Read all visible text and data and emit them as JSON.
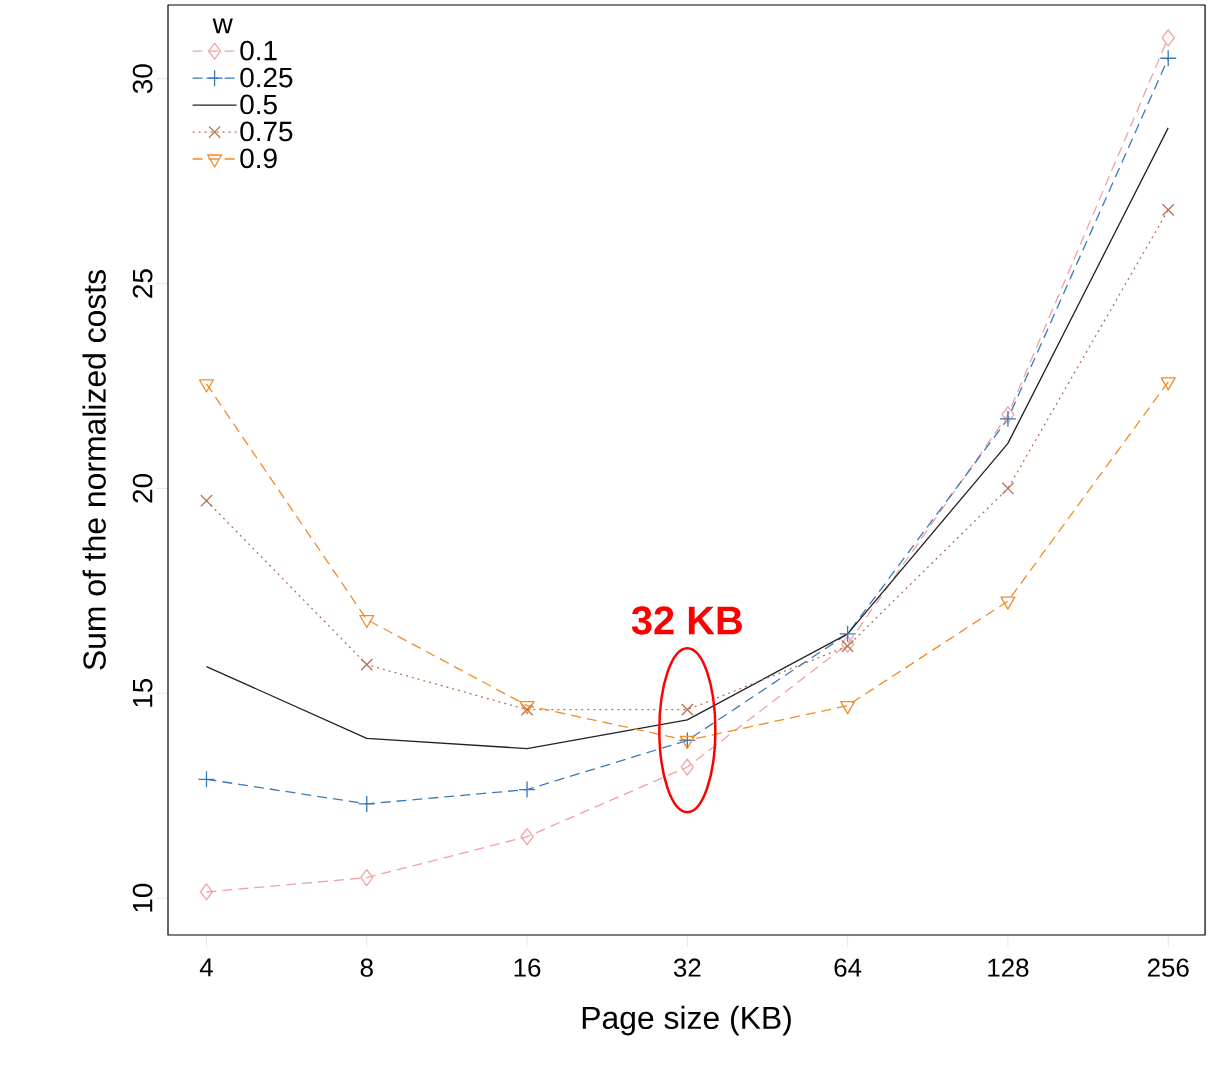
{
  "chart_data": {
    "type": "line",
    "xlabel": "Page size (KB)",
    "ylabel": "Sum of the normalized costs",
    "legend_title": "w",
    "categories": [
      "4",
      "8",
      "16",
      "32",
      "64",
      "128",
      "256"
    ],
    "ylim": [
      9.1,
      31.8
    ],
    "yticks": [
      10,
      15,
      20,
      25,
      30
    ],
    "legend": "top left",
    "grid": false,
    "series": [
      {
        "name": "0.1",
        "color": "#f1a1a4",
        "marker": "diamond",
        "line_style": "dashed",
        "values": [
          10.15,
          10.5,
          11.5,
          13.2,
          16.2,
          21.8,
          31.0
        ]
      },
      {
        "name": "0.25",
        "color": "#3a7ab8",
        "marker": "plus",
        "line_style": "dashed",
        "values": [
          12.9,
          12.3,
          12.65,
          13.85,
          16.45,
          21.7,
          30.5
        ]
      },
      {
        "name": "0.5",
        "color": "#222222",
        "marker": "none",
        "line_style": "solid",
        "values": [
          15.65,
          13.9,
          13.65,
          14.35,
          16.45,
          21.1,
          28.8
        ]
      },
      {
        "name": "0.75",
        "color": "#b5734f",
        "marker": "cross",
        "line_style": "dotted",
        "values": [
          19.7,
          15.7,
          14.6,
          14.6,
          16.15,
          20.0,
          26.8
        ]
      },
      {
        "name": "0.9",
        "color": "#f08c2a",
        "marker": "triangle",
        "line_style": "dashed",
        "values": [
          22.55,
          16.8,
          14.7,
          13.85,
          14.7,
          17.25,
          22.6
        ]
      }
    ],
    "annotations": [
      {
        "text": "32 KB",
        "x": "32",
        "y": 14.1
      }
    ]
  }
}
